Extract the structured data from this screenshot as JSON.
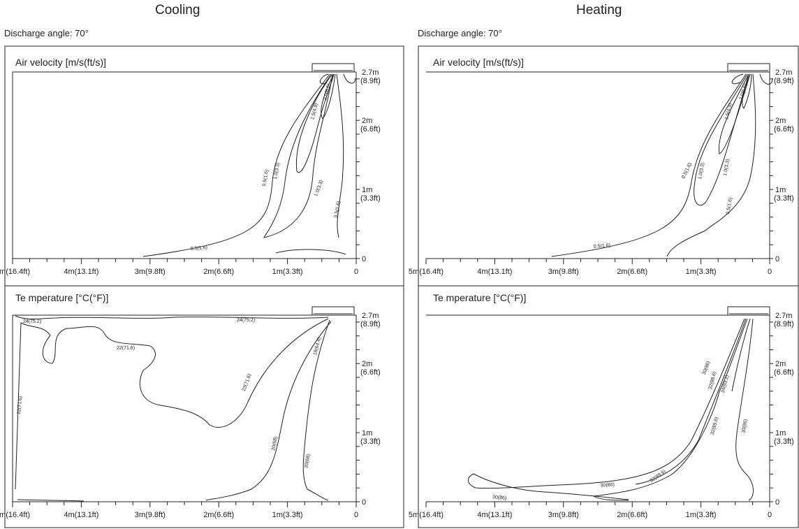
{
  "columns": [
    {
      "title": "Cooling",
      "angle_label": "Discharge angle: 70°"
    },
    {
      "title": "Heating",
      "angle_label": "Discharge angle: 70°"
    }
  ],
  "panel_titles": {
    "velocity": "Air velocity [m/s(ft/s)]",
    "temperature": "Te mperature [°C(°F)]"
  },
  "x_ticks": [
    "5m(16.4ft)",
    "4m(13.1ft)",
    "3m(9.8ft)",
    "2m(6.6ft)",
    "1m(3.3ft)",
    "0"
  ],
  "y_ticks": [
    {
      "m": "2.7m",
      "ft": "(8.9ft)"
    },
    {
      "m": "2m",
      "ft": "(6.6ft)"
    },
    {
      "m": "1m",
      "ft": "(3.3ft)"
    },
    {
      "m": "0",
      "ft": ""
    }
  ],
  "contour_labels": {
    "cool_vel": [
      "2.0(6.6)",
      "1.5(4.9)",
      "0.5(1.6)",
      "1.0(3.3)",
      "1.0(3.3)",
      "0.5(1.6)",
      "0.5(1.6)"
    ],
    "heat_vel": [
      "2.0(6.6)",
      "1.5(4.9)",
      "0.5(1.6)",
      "1.0(3.3)",
      "1.0(3.3)",
      "0.5(1.6)",
      "0.5(1.6)"
    ],
    "cool_temp": [
      "24(75.2)",
      "24(75.2)",
      "22(71.6)",
      "22(71.6)",
      "22(71.6)",
      "18(64.4)",
      "20(68)",
      "20(68)"
    ],
    "heat_temp": [
      "30(86)",
      "32(89.6)",
      "34(93.2)",
      "32(89.6)",
      "30(86)",
      "30(86)",
      "32(89.6)",
      "30(86)"
    ]
  }
}
